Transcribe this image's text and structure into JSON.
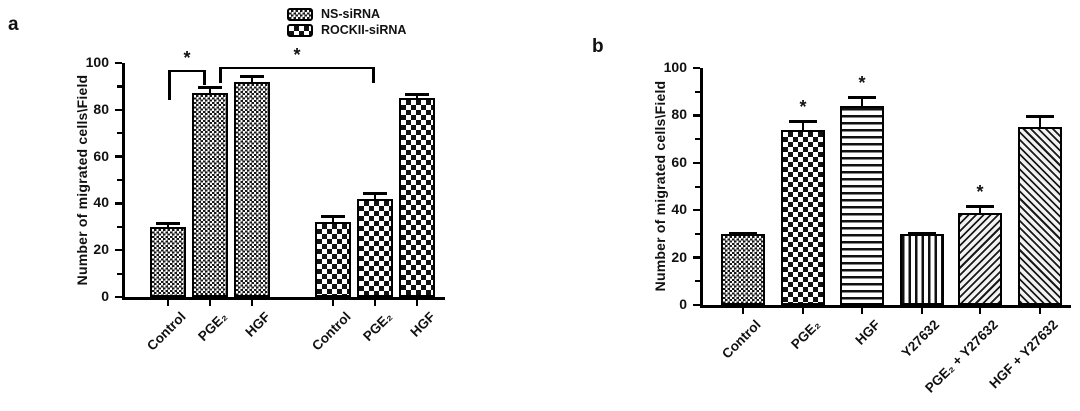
{
  "figure": {
    "panels": [
      {
        "letter": "a"
      },
      {
        "letter": "b"
      }
    ]
  },
  "chart_data": [
    {
      "type": "bar",
      "panel": "a",
      "title": "",
      "xlabel": "",
      "ylabel": "Number of migrated cells\\Field",
      "ylim": [
        0,
        100
      ],
      "yticks": [
        0,
        20,
        40,
        60,
        80,
        100
      ],
      "grid": false,
      "legend_position": "top",
      "legend": [
        {
          "label": "NS-siRNA",
          "pattern": "fine-check"
        },
        {
          "label": "ROCKII-siRNA",
          "pattern": "coarse-check"
        }
      ],
      "bars": [
        {
          "category": "Control",
          "group": "NS-siRNA",
          "pattern": "fine-check",
          "value": 30,
          "error": 2,
          "sig": ""
        },
        {
          "category": "PGE₂",
          "group": "NS-siRNA",
          "pattern": "fine-check",
          "value": 87,
          "error": 3,
          "sig": ""
        },
        {
          "category": "HGF",
          "group": "NS-siRNA",
          "pattern": "fine-check",
          "value": 92,
          "error": 3,
          "sig": ""
        },
        {
          "category": "Control",
          "group": "ROCKII-siRNA",
          "pattern": "coarse-check",
          "value": 32,
          "error": 3,
          "sig": ""
        },
        {
          "category": "PGE₂",
          "group": "ROCKII-siRNA",
          "pattern": "coarse-check",
          "value": 42,
          "error": 3,
          "sig": ""
        },
        {
          "category": "HGF",
          "group": "ROCKII-siRNA",
          "pattern": "coarse-check",
          "value": 85,
          "error": 2,
          "sig": ""
        }
      ],
      "significance": [
        {
          "label": "*",
          "between": [
            "NS-siRNA Control",
            "NS-siRNA PGE₂"
          ]
        },
        {
          "label": "*",
          "between": [
            "NS-siRNA PGE₂",
            "ROCKII-siRNA PGE₂"
          ]
        }
      ]
    },
    {
      "type": "bar",
      "panel": "b",
      "title": "",
      "xlabel": "",
      "ylabel": "Number of migrated cells\\Field",
      "ylim": [
        0,
        100
      ],
      "yticks": [
        0,
        20,
        40,
        60,
        80,
        100
      ],
      "grid": false,
      "bars": [
        {
          "category": "Control",
          "pattern": "fine-check",
          "value": 30,
          "error": 1,
          "sig": ""
        },
        {
          "category": "PGE₂",
          "pattern": "coarse-check",
          "value": 74,
          "error": 4,
          "sig": "*"
        },
        {
          "category": "HGF",
          "pattern": "hlines",
          "value": 84,
          "error": 4,
          "sig": "*"
        },
        {
          "category": "Y27632",
          "pattern": "vlines",
          "value": 30,
          "error": 1,
          "sig": ""
        },
        {
          "category": "PGE₂ + Y27632",
          "pattern": "diag-up",
          "value": 39,
          "error": 3,
          "sig": "*"
        },
        {
          "category": "HGF + Y27632",
          "pattern": "diag-down",
          "value": 75,
          "error": 5,
          "sig": ""
        }
      ]
    }
  ]
}
